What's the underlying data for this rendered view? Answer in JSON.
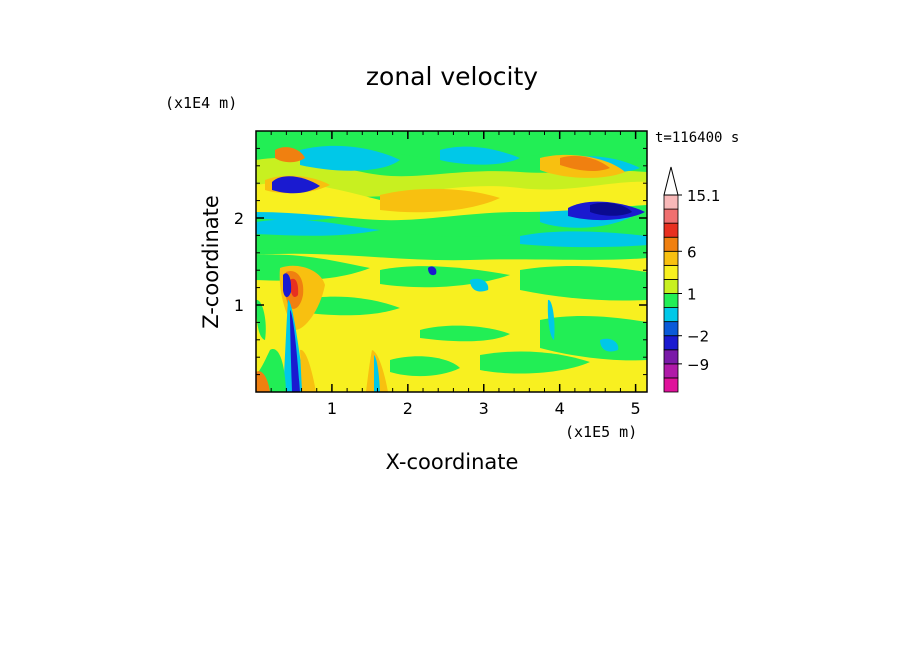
{
  "chart_data": {
    "type": "heatmap",
    "title": "zonal velocity",
    "xlabel": "X-coordinate",
    "ylabel": "Z-coordinate",
    "x_unit": "(x1E5 m)",
    "y_unit": "(x1E4 m)",
    "time_label": "t=116400 s",
    "xlim": [
      0,
      5.15
    ],
    "ylim": [
      0,
      3.0
    ],
    "x_ticks": [
      1,
      2,
      3,
      4,
      5
    ],
    "y_ticks": [
      1,
      2
    ],
    "colorbar": {
      "levels": [
        -15,
        -12,
        -9,
        -6,
        -2,
        -1,
        0,
        1,
        2,
        4,
        6,
        9,
        12,
        15.1
      ],
      "colors": [
        "#e0129b",
        "#b01aa8",
        "#7a1aa8",
        "#1a1ad0",
        "#0a5ad8",
        "#00c8e8",
        "#22ee55",
        "#c8f020",
        "#f8f020",
        "#f8c010",
        "#f08010",
        "#e83020",
        "#f07070",
        "#f8b8b8"
      ],
      "tick_labels": [
        "15.1",
        "6",
        "1",
        "-2",
        "-9"
      ],
      "tick_values": [
        15.1,
        6,
        1,
        -2,
        -9
      ],
      "extend": "max"
    }
  }
}
